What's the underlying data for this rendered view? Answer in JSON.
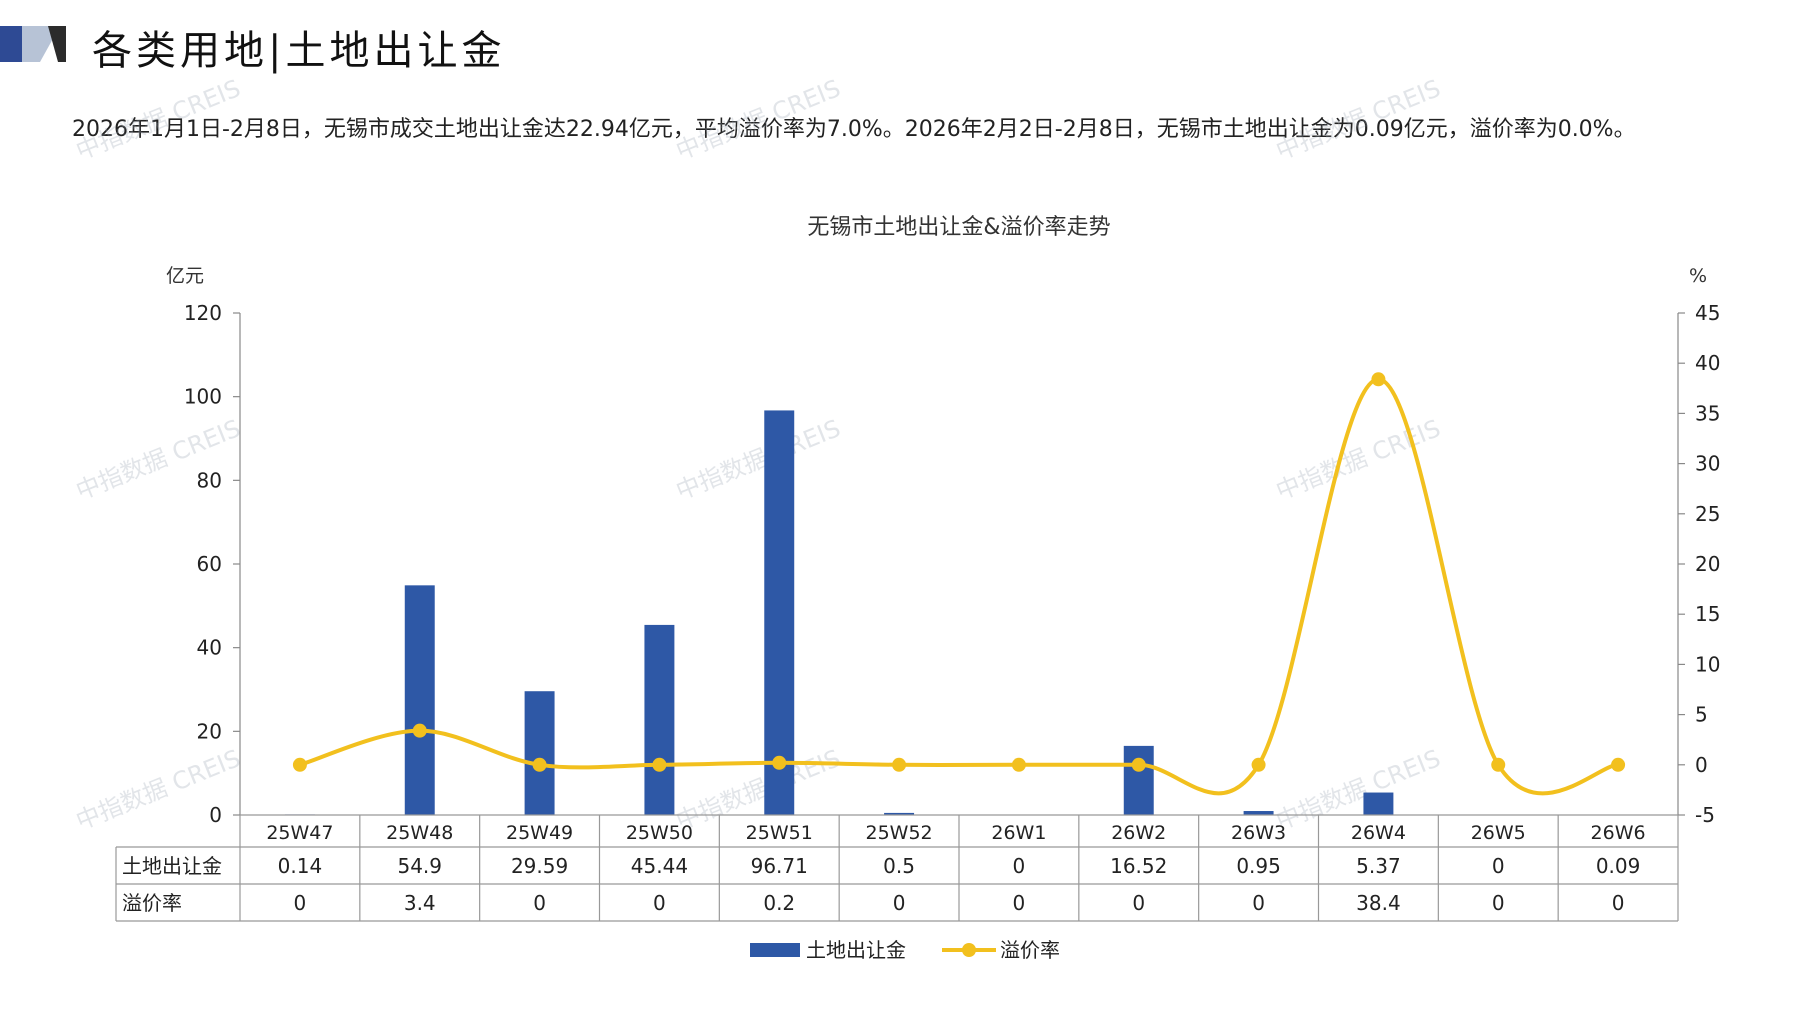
{
  "header": {
    "title": "各类用地|土地出让金"
  },
  "summary": "2026年1月1日-2月8日，无锡市成交土地出让金达22.94亿元，平均溢价率为7.0%。2026年2月2日-2月8日，无锡市土地出让金为0.09亿元，溢价率为0.0%。",
  "watermark": "中指数据 CREIS",
  "colors": {
    "bar": "#2E58A6",
    "line": "#F2C01E",
    "logo_dark": "#2E4A94",
    "logo_light": "#B7C3D6"
  },
  "chart_data": {
    "type": "bar",
    "title": "无锡市土地出让金&溢价率走势",
    "y_left_unit": "亿元",
    "y_right_unit": "%",
    "y_left_range": [
      0,
      120
    ],
    "y_left_ticks": [
      "0",
      "20",
      "40",
      "60",
      "80",
      "100",
      "120"
    ],
    "y_right_range": [
      -5,
      45
    ],
    "y_right_ticks": [
      "-5",
      "0",
      "5",
      "10",
      "15",
      "20",
      "25",
      "30",
      "35",
      "40",
      "45"
    ],
    "categories": [
      "25W47",
      "25W48",
      "25W49",
      "25W50",
      "25W51",
      "25W52",
      "26W1",
      "26W2",
      "26W3",
      "26W4",
      "26W5",
      "26W6"
    ],
    "series": [
      {
        "name": "土地出让金",
        "type": "bar",
        "axis": "left",
        "values": [
          0.14,
          54.9,
          29.59,
          45.44,
          96.71,
          0.5,
          0,
          16.52,
          0.95,
          5.37,
          0,
          0.09
        ],
        "labels": [
          "0.14",
          "54.9",
          "29.59",
          "45.44",
          "96.71",
          "0.5",
          "0",
          "16.52",
          "0.95",
          "5.37",
          "0",
          "0.09"
        ]
      },
      {
        "name": "溢价率",
        "type": "line",
        "axis": "right",
        "values": [
          0,
          3.4,
          0,
          0,
          0.2,
          0,
          0,
          0,
          0,
          38.4,
          0,
          0
        ],
        "labels": [
          "0",
          "3.4",
          "0",
          "0",
          "0.2",
          "0",
          "0",
          "0",
          "0",
          "38.4",
          "0",
          "0"
        ]
      }
    ],
    "grid": false,
    "legend_position": "bottom",
    "data_table": true
  }
}
